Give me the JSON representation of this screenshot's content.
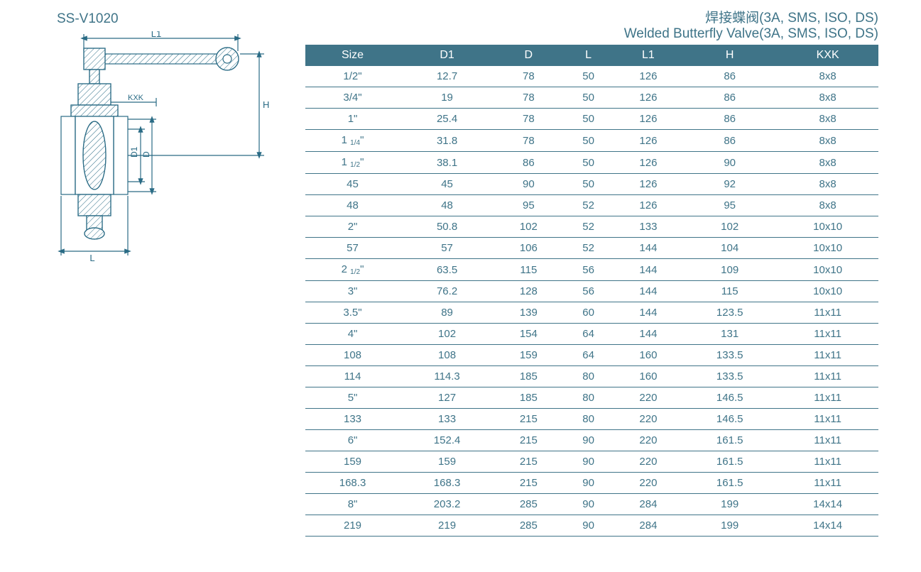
{
  "header": {
    "title_cn": "焊接蝶阀(3A, SMS, ISO, DS)",
    "title_en": "Welded Butterfly Valve(3A, SMS, ISO, DS)",
    "model": "SS-V1020"
  },
  "drawing": {
    "labels": {
      "L1": "L1",
      "H": "H",
      "KXK": "KXK",
      "D1": "D1",
      "D": "D",
      "L": "L"
    },
    "stroke_color": "#2a6b85",
    "hatch_color": "#2a6b85",
    "line_width": 1.2
  },
  "table": {
    "header_bg": "#3f7488",
    "header_fg": "#ffffff",
    "row_border": "#3f7488",
    "text_color": "#3f7488",
    "font_size": 15,
    "columns": [
      "Size",
      "D1",
      "D",
      "L",
      "L1",
      "H",
      "KXK"
    ],
    "rows": [
      [
        "1/2\"",
        "12.7",
        "78",
        "50",
        "126",
        "86",
        "8x8"
      ],
      [
        "3/4\"",
        "19",
        "78",
        "50",
        "126",
        "86",
        "8x8"
      ],
      [
        "1\"",
        "25.4",
        "78",
        "50",
        "126",
        "86",
        "8x8"
      ],
      [
        "1 1/4\"",
        "31.8",
        "78",
        "50",
        "126",
        "86",
        "8x8"
      ],
      [
        "1 1/2\"",
        "38.1",
        "86",
        "50",
        "126",
        "90",
        "8x8"
      ],
      [
        "45",
        "45",
        "90",
        "50",
        "126",
        "92",
        "8x8"
      ],
      [
        "48",
        "48",
        "95",
        "52",
        "126",
        "95",
        "8x8"
      ],
      [
        "2\"",
        "50.8",
        "102",
        "52",
        "133",
        "102",
        "10x10"
      ],
      [
        "57",
        "57",
        "106",
        "52",
        "144",
        "104",
        "10x10"
      ],
      [
        "2 1/2\"",
        "63.5",
        "115",
        "56",
        "144",
        "109",
        "10x10"
      ],
      [
        "3\"",
        "76.2",
        "128",
        "56",
        "144",
        "115",
        "10x10"
      ],
      [
        "3.5\"",
        "89",
        "139",
        "60",
        "144",
        "123.5",
        "11x11"
      ],
      [
        "4\"",
        "102",
        "154",
        "64",
        "144",
        "131",
        "11x11"
      ],
      [
        "108",
        "108",
        "159",
        "64",
        "160",
        "133.5",
        "11x11"
      ],
      [
        "114",
        "114.3",
        "185",
        "80",
        "160",
        "133.5",
        "11x11"
      ],
      [
        "5\"",
        "127",
        "185",
        "80",
        "220",
        "146.5",
        "11x11"
      ],
      [
        "133",
        "133",
        "215",
        "80",
        "220",
        "146.5",
        "11x11"
      ],
      [
        "6\"",
        "152.4",
        "215",
        "90",
        "220",
        "161.5",
        "11x11"
      ],
      [
        "159",
        "159",
        "215",
        "90",
        "220",
        "161.5",
        "11x11"
      ],
      [
        "168.3",
        "168.3",
        "215",
        "90",
        "220",
        "161.5",
        "11x11"
      ],
      [
        "8\"",
        "203.2",
        "285",
        "90",
        "284",
        "199",
        "14x14"
      ],
      [
        "219",
        "219",
        "285",
        "90",
        "284",
        "199",
        "14x14"
      ]
    ]
  }
}
